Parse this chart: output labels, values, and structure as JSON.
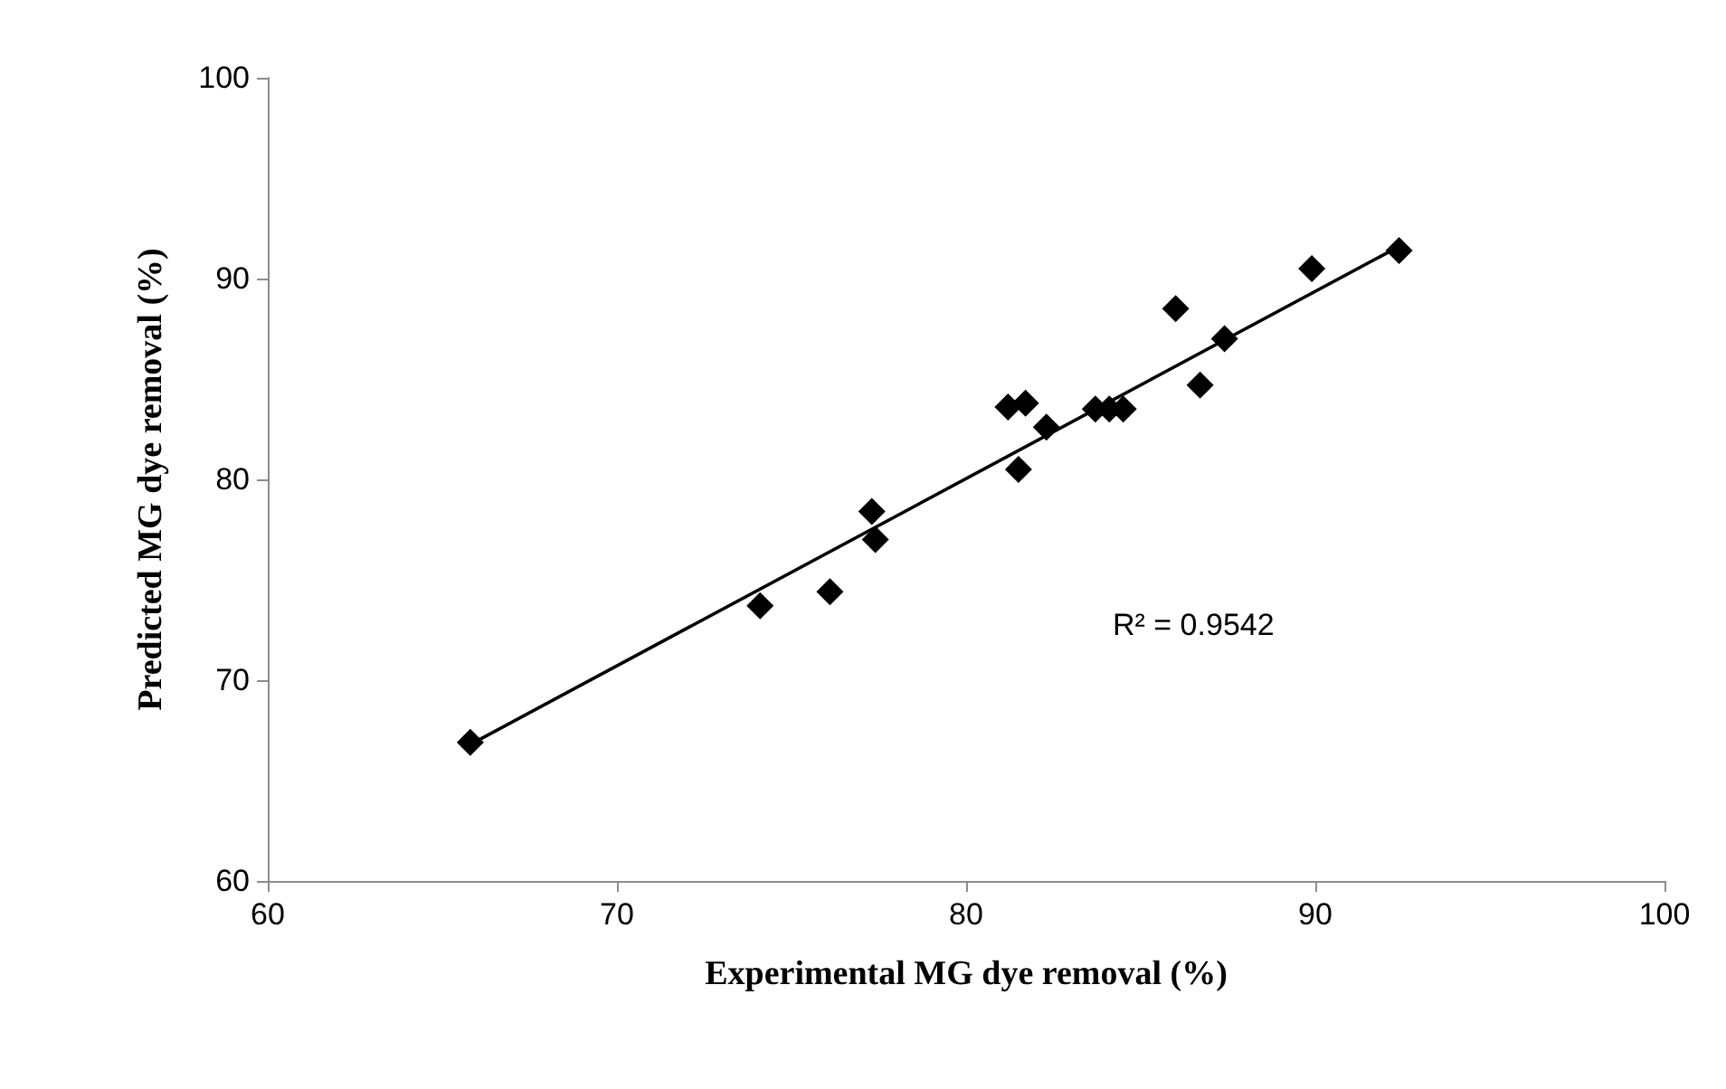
{
  "chart_data": {
    "type": "scatter",
    "xlabel": "Experimental MG dye removal (%)",
    "ylabel": "Predicted MG dye removal (%)",
    "annotations": [
      "R² = 0.9542"
    ],
    "series": [
      {
        "color": "#000000",
        "marker": "diamond",
        "x": [
          65.8,
          74.1,
          76.1,
          77.3,
          77.4,
          81.2,
          81.7,
          82.3,
          81.5,
          83.7,
          84.1,
          84.5,
          86.0,
          86.7,
          87.4,
          89.9,
          92.4
        ],
        "values": [
          66.9,
          73.7,
          74.4,
          78.4,
          77.0,
          83.6,
          83.8,
          82.6,
          80.5,
          83.5,
          83.5,
          83.5,
          88.5,
          84.7,
          87.0,
          90.5,
          91.4
        ]
      },
      {
        "type": "line",
        "color": "#000000",
        "marker": "none",
        "line_style": "solid",
        "x": [
          65.8,
          92.4
        ],
        "values": [
          66.8,
          91.6
        ]
      }
    ],
    "xlim": [
      60,
      100
    ],
    "xticks": [
      60,
      70,
      80,
      90,
      100
    ],
    "ylim": [
      60,
      100
    ],
    "yticks": [
      60,
      70,
      80,
      90,
      100
    ],
    "grid": false
  }
}
